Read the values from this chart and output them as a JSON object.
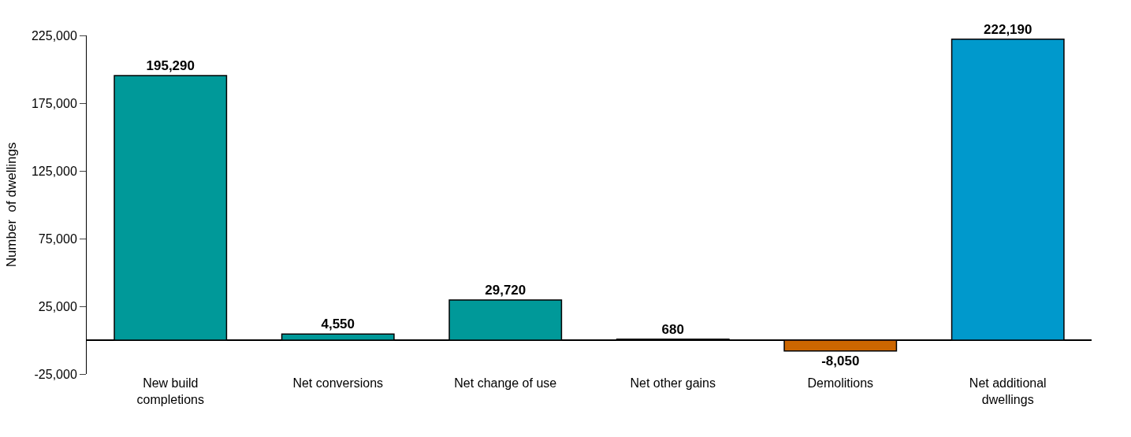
{
  "chart_data": {
    "type": "bar",
    "ylabel": "Number  of dwellings",
    "categories": [
      "New build completions",
      "Net conversions",
      "Net change of use",
      "Net other gains",
      "Demolitions",
      "Net additional dwellings"
    ],
    "values": [
      195290,
      4550,
      29720,
      680,
      -8050,
      222190
    ],
    "value_labels": [
      "195,290",
      "4,550",
      "29,720",
      "680",
      "-8,050",
      "222,190"
    ],
    "colors": [
      "#009999",
      "#009999",
      "#009999",
      "#009999",
      "#cc6600",
      "#0099cc"
    ],
    "ylim": [
      -25000,
      225000
    ],
    "yticks": [
      {
        "value": -25000,
        "label": "-25,000"
      },
      {
        "value": 25000,
        "label": "25,000"
      },
      {
        "value": 75000,
        "label": "75,000"
      },
      {
        "value": 125000,
        "label": "125,000"
      },
      {
        "value": 175000,
        "label": "175,000"
      },
      {
        "value": 225000,
        "label": "225,000"
      }
    ]
  }
}
